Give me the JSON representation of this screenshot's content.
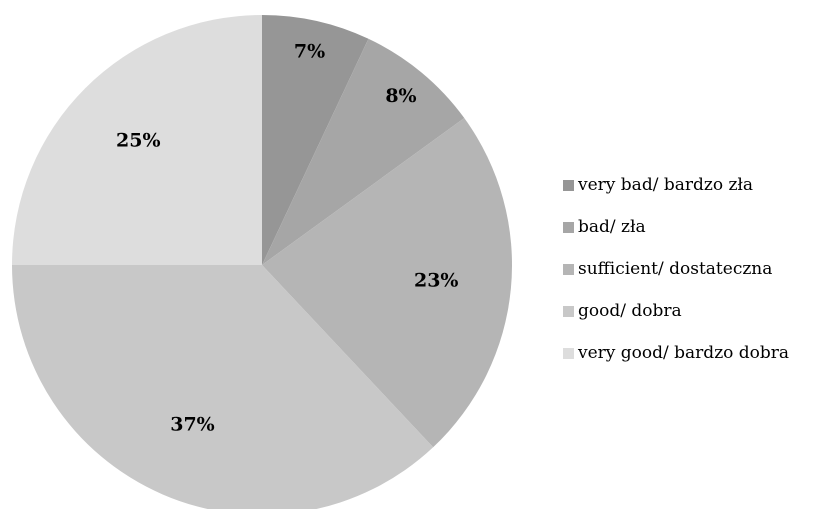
{
  "chart_data": {
    "type": "pie",
    "series": [
      {
        "name": "very bad/ bardzo zła",
        "value": 7,
        "label": "7%",
        "color": "#969696"
      },
      {
        "name": "bad/ zła",
        "value": 8,
        "label": "8%",
        "color": "#a6a6a6"
      },
      {
        "name": "sufficient/ dostateczna",
        "value": 23,
        "label": "23%",
        "color": "#b5b5b5"
      },
      {
        "name": "good/ dobra",
        "value": 37,
        "label": "37%",
        "color": "#c8c8c8"
      },
      {
        "name": "very good/ bardzo dobra",
        "value": 25,
        "label": "25%",
        "color": "#dddddd"
      }
    ],
    "start": "12 o'clock",
    "direction": "clockwise",
    "legend": "right"
  }
}
